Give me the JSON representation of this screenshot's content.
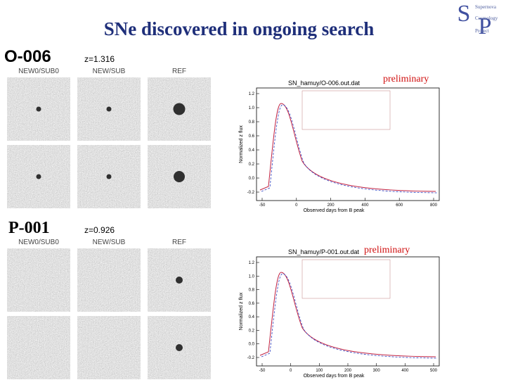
{
  "header": {
    "title": "SNe discovered in ongoing search",
    "logo": [
      "Supernova",
      "Cosmology",
      "Project"
    ]
  },
  "panels": [
    {
      "name": "O-006",
      "redshift": "z=1.316",
      "columns": [
        "NEW0/SUB0",
        "NEW/SUB",
        "REF"
      ],
      "stamp": "preliminary",
      "plot": {
        "title": "SN_hamuy/O-006.out.dat",
        "y_label": "Normalized z flux",
        "x_label": "Observed days from B peak",
        "yticks": [
          "-0.2",
          "0.0",
          "0.2",
          "0.4",
          "0.6",
          "0.8",
          "1.0",
          "1.2"
        ],
        "xticks": [
          "-50",
          "0",
          "200",
          "400",
          "600",
          "800"
        ]
      }
    },
    {
      "name": "P-001",
      "redshift": "z=0.926",
      "columns": [
        "NEW0/SUB0",
        "NEW/SUB",
        "REF"
      ],
      "stamp": "preliminary",
      "plot": {
        "title": "SN_hamuy/P-001.out.dat",
        "y_label": "Normalized z flux",
        "x_label": "Observed days from B peak",
        "yticks": [
          "-0.2",
          "0.0",
          "0.2",
          "0.4",
          "0.6",
          "0.8",
          "1.0",
          "1.2"
        ],
        "xticks": [
          "-50",
          "0",
          "100",
          "200",
          "300",
          "400",
          "500"
        ]
      }
    }
  ]
}
